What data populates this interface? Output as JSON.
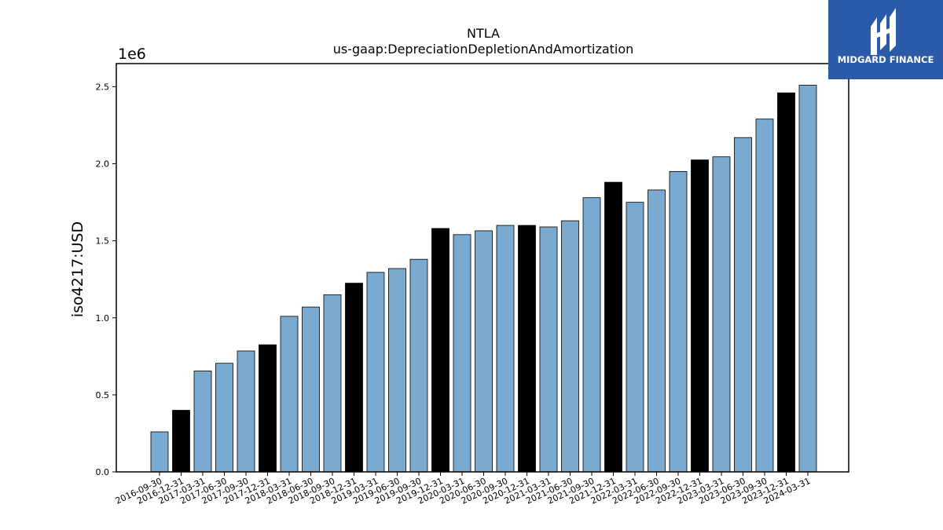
{
  "brand": {
    "name": "MIDGARD FINANCE",
    "color": "#2b5aa8"
  },
  "chart_data": {
    "type": "bar",
    "title": "NTLA",
    "subtitle": "us-gaap:DepreciationDepletionAndAmortization",
    "xlabel": "",
    "ylabel": "iso4217:USD",
    "y_multiplier_label": "1e6",
    "ylim": [
      0,
      2.65
    ],
    "yticks": [
      0.0,
      0.5,
      1.0,
      1.5,
      2.0,
      2.5
    ],
    "ytick_labels": [
      "0.0",
      "0.5",
      "1.0",
      "1.5",
      "2.0",
      "2.5"
    ],
    "grid": false,
    "colors": {
      "quarter": "#7aaad0",
      "year_end": "#000000",
      "edge": "#000000"
    },
    "categories": [
      "2016-09-30",
      "2016-12-31",
      "2017-03-31",
      "2017-06-30",
      "2017-09-30",
      "2017-12-31",
      "2018-03-31",
      "2018-06-30",
      "2018-09-30",
      "2018-12-31",
      "2019-03-31",
      "2019-06-30",
      "2019-09-30",
      "2019-12-31",
      "2020-03-31",
      "2020-06-30",
      "2020-09-30",
      "2020-12-31",
      "2021-03-31",
      "2021-06-30",
      "2021-09-30",
      "2021-12-31",
      "2022-03-31",
      "2022-06-30",
      "2022-09-30",
      "2022-12-31",
      "2023-03-31",
      "2023-06-30",
      "2023-09-30",
      "2023-12-31",
      "2024-03-31"
    ],
    "values": [
      0.26,
      0.4,
      0.655,
      0.705,
      0.785,
      0.825,
      1.01,
      1.07,
      1.15,
      1.225,
      1.295,
      1.32,
      1.38,
      1.58,
      1.54,
      1.565,
      1.6,
      1.6,
      1.59,
      1.63,
      1.78,
      1.88,
      1.75,
      1.83,
      1.95,
      2.025,
      2.045,
      2.17,
      2.29,
      2.46,
      2.51
    ],
    "year_end": [
      false,
      true,
      false,
      false,
      false,
      true,
      false,
      false,
      false,
      true,
      false,
      false,
      false,
      true,
      false,
      false,
      false,
      true,
      false,
      false,
      false,
      true,
      false,
      false,
      false,
      true,
      false,
      false,
      false,
      true,
      false
    ]
  }
}
